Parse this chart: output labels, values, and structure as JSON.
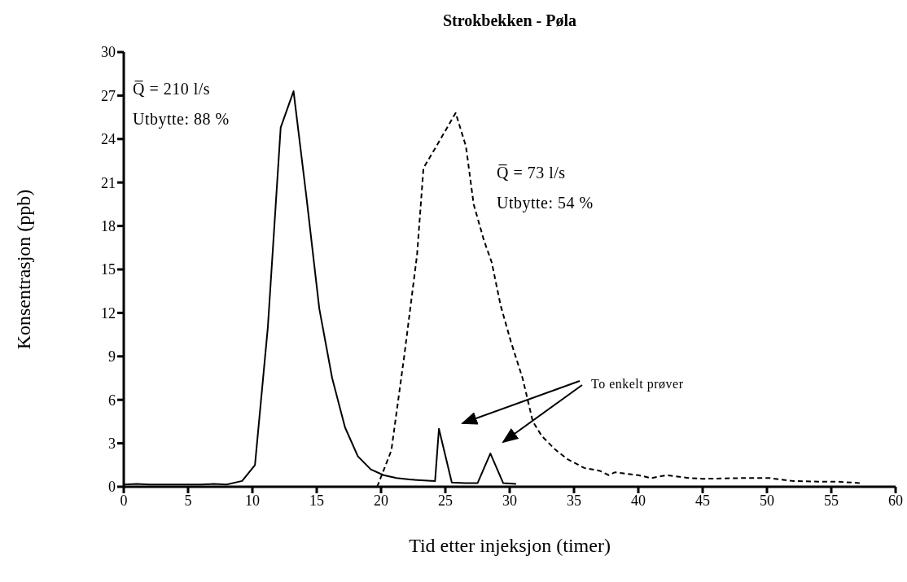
{
  "chart_data": {
    "type": "line",
    "title": "Strokbekken - Pøla",
    "xlabel": "Tid etter injeksjon (timer)",
    "ylabel": "Konsentrasjon (ppb)",
    "annotations": [
      "Q̅ = 210 l/s",
      "Utbytte: 88 %",
      "Q̅ = 73 l/s",
      "Utbytte: 54 %",
      "To enkelt prøver"
    ],
    "series": [
      {
        "color": "#000000",
        "line_style": "solid",
        "x": [
          0,
          1,
          2,
          3,
          4,
          5,
          6,
          7,
          8,
          9.2,
          10.2,
          11.2,
          12.2,
          13.2,
          14.2,
          15.2,
          16.2,
          17.2,
          18.2,
          19.2,
          20.2,
          21.2,
          22.2,
          24.2,
          24.5,
          25.5,
          26.5,
          27.5,
          28.5,
          29.5,
          30.5
        ],
        "values": [
          0.15,
          0.2,
          0.15,
          0.15,
          0.15,
          0.15,
          0.15,
          0.2,
          0.15,
          0.4,
          1.5,
          11,
          24.8,
          27.3,
          20,
          12.3,
          7.5,
          4.1,
          2.1,
          1.2,
          0.8,
          0.6,
          0.5,
          0.4,
          4,
          0.3,
          0.25,
          0.25,
          2.3,
          0.25,
          0.2
        ]
      },
      {
        "color": "#000000",
        "line_style": "dashed",
        "x": [
          19.7,
          20.8,
          21.8,
          22.8,
          23.3,
          24.3,
          25.8,
          26.6,
          27.2,
          28,
          28.6,
          29.3,
          30.1,
          31,
          31.8,
          32.5,
          33.5,
          34.5,
          35.8,
          37,
          37.7,
          38.2,
          40,
          41,
          42.2,
          44,
          45,
          48,
          50.2,
          52,
          54,
          55.5,
          57.3
        ],
        "values": [
          0,
          2.5,
          9,
          16,
          22,
          23.5,
          25.8,
          23.5,
          19.5,
          17,
          15.5,
          12.5,
          10,
          7.5,
          4.5,
          3.5,
          2.6,
          1.9,
          1.3,
          1.1,
          0.8,
          1.0,
          0.8,
          0.6,
          0.8,
          0.6,
          0.55,
          0.6,
          0.6,
          0.4,
          0.35,
          0.35,
          0.25
        ]
      }
    ],
    "xlim": [
      0,
      60
    ],
    "xticks": [
      0,
      5,
      10,
      15,
      20,
      25,
      30,
      35,
      40,
      45,
      50,
      55,
      60
    ],
    "ylim": [
      0,
      30
    ],
    "yticks": [
      0,
      3,
      6,
      9,
      12,
      15,
      18,
      21,
      24,
      27,
      30
    ],
    "grid": false,
    "marker": "none"
  }
}
